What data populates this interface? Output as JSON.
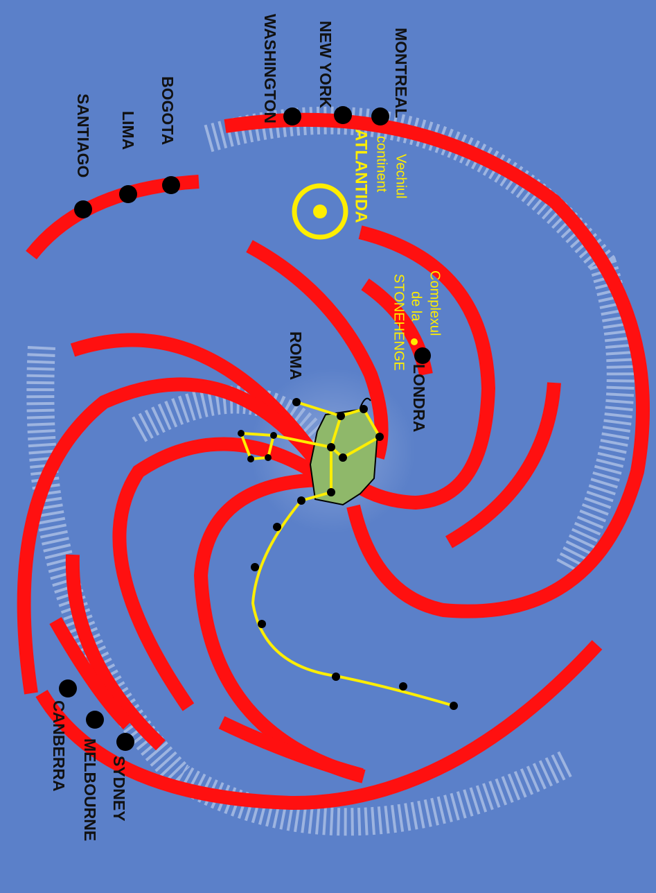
{
  "cities": {
    "montreal": "MONTREAL",
    "new_york": "NEW YORK",
    "washington": "WASHINGTON",
    "bogota": "BOGOTA",
    "lima": "LIMA",
    "santiago": "SANTIAGO",
    "londra": "LONDRA",
    "roma": "ROMA",
    "canberra": "CANBERRA",
    "melbourne": "MELBOURNE",
    "sydney": "SYDNEY"
  },
  "annotations": {
    "atlantida": [
      "Vechiul",
      "continent",
      "ATLANTIDA"
    ],
    "stonehenge": [
      "Complexul",
      "de la",
      "STONEHENGE"
    ]
  }
}
